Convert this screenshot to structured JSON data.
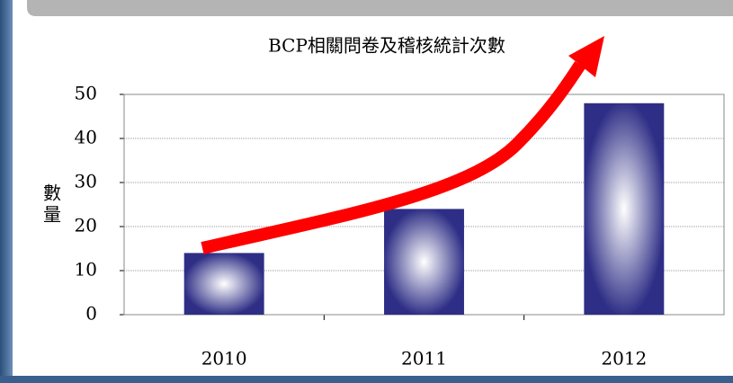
{
  "chart_data": {
    "type": "bar",
    "title": "BCP相關問卷及稽核統計次數",
    "y_label": "數量",
    "categories": [
      "2010",
      "2011",
      "2012"
    ],
    "values": [
      14,
      24,
      48
    ],
    "color": "#2e2e86",
    "ylim": [
      0,
      50
    ],
    "yticks": [
      0,
      10,
      20,
      30,
      40,
      50
    ],
    "grid": true
  }
}
